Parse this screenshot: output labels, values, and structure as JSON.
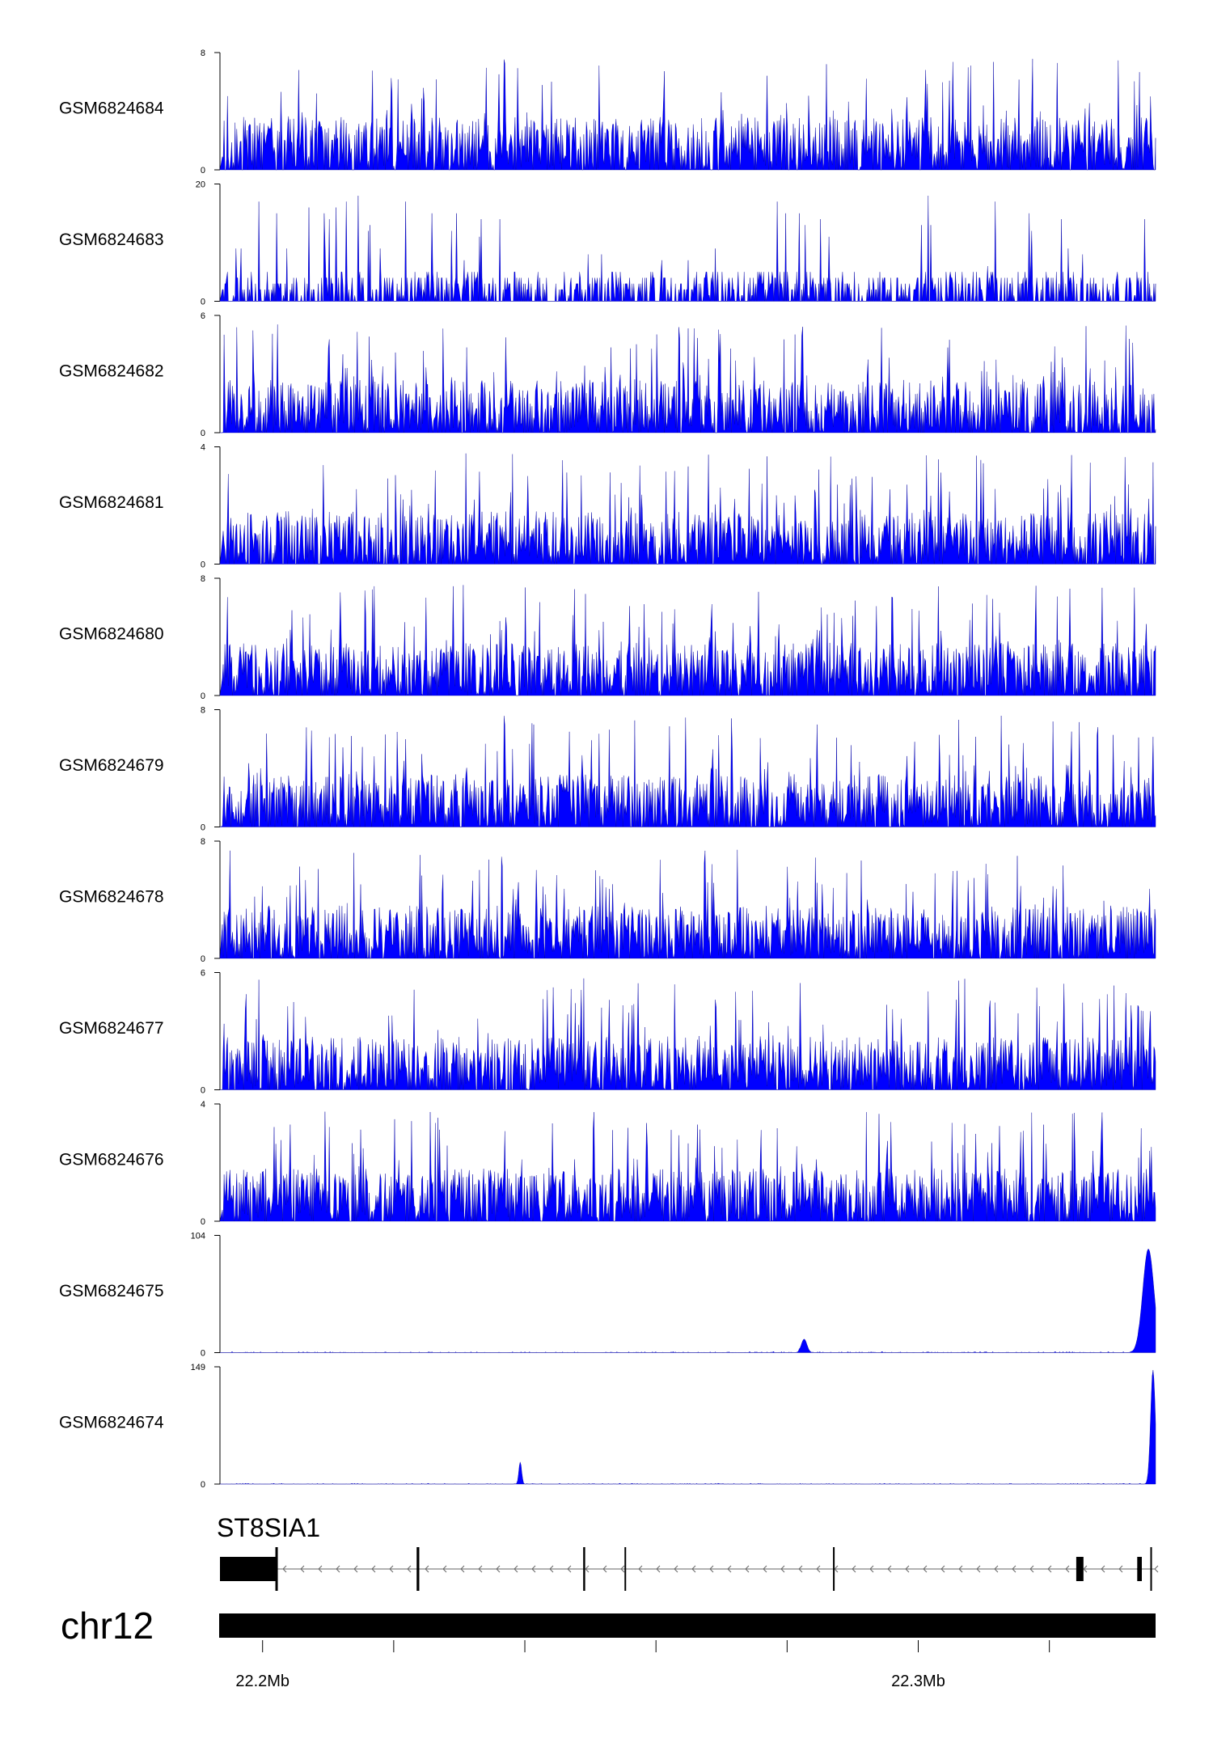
{
  "chart_data": {
    "type": "area",
    "title": "",
    "tracks": [
      {
        "name": "GSM6824684",
        "ymin": 0,
        "ymax": 8,
        "ymin_label": "0",
        "ymax_label": "8",
        "style": "noise",
        "seed": 11
      },
      {
        "name": "GSM6824683",
        "ymin": 0,
        "ymax": 20,
        "ymin_label": "0",
        "ymax_label": "20",
        "style": "sparse",
        "seed": 23
      },
      {
        "name": "GSM6824682",
        "ymin": 0,
        "ymax": 6,
        "ymin_label": "0",
        "ymax_label": "6",
        "style": "noise",
        "seed": 37
      },
      {
        "name": "GSM6824681",
        "ymin": 0,
        "ymax": 4,
        "ymin_label": "0",
        "ymax_label": "4",
        "style": "noise",
        "seed": 41
      },
      {
        "name": "GSM6824680",
        "ymin": 0,
        "ymax": 8,
        "ymin_label": "0",
        "ymax_label": "8",
        "style": "noise",
        "seed": 53
      },
      {
        "name": "GSM6824679",
        "ymin": 0,
        "ymax": 8,
        "ymin_label": "0",
        "ymax_label": "8",
        "style": "noise",
        "seed": 67
      },
      {
        "name": "GSM6824678",
        "ymin": 0,
        "ymax": 8,
        "ymin_label": "0",
        "ymax_label": "8",
        "style": "noise",
        "seed": 71
      },
      {
        "name": "GSM6824677",
        "ymin": 0,
        "ymax": 6,
        "ymin_label": "0",
        "ymax_label": "6",
        "style": "noise",
        "seed": 83
      },
      {
        "name": "GSM6824676",
        "ymin": 0,
        "ymax": 4,
        "ymin_label": "0",
        "ymax_label": "4",
        "style": "noise",
        "seed": 97
      },
      {
        "name": "GSM6824675",
        "ymin": 0,
        "ymax": 104,
        "ymin_label": "0",
        "ymax_label": "104",
        "style": "peaks",
        "seed": 101,
        "peaks": [
          {
            "x": 22.2826,
            "height": 12,
            "width": 0.0006
          },
          {
            "x": 22.3351,
            "height": 92,
            "width": 0.0012
          }
        ]
      },
      {
        "name": "GSM6824674",
        "ymin": 0,
        "ymax": 149,
        "ymin_label": "0",
        "ymax_label": "149",
        "style": "peaks",
        "seed": 113,
        "peaks": [
          {
            "x": 22.2393,
            "height": 28,
            "width": 0.0003
          },
          {
            "x": 22.3358,
            "height": 145,
            "width": 0.0005
          }
        ]
      }
    ],
    "x_range_mb": [
      22.1935,
      22.3362
    ],
    "color": "#0000ff",
    "gene": {
      "name": "ST8SIA1",
      "strand": "-",
      "exons": [
        {
          "start": 22.1935,
          "end": 22.2022
        },
        {
          "start": 22.2235,
          "end": 22.2239
        },
        {
          "start": 22.2489,
          "end": 22.2492
        },
        {
          "start": 22.2552,
          "end": 22.2554
        },
        {
          "start": 22.287,
          "end": 22.2872
        },
        {
          "start": 22.3241,
          "end": 22.3252
        },
        {
          "start": 22.3334,
          "end": 22.3341
        },
        {
          "start": 22.3354,
          "end": 22.3356
        }
      ]
    },
    "chromosome": {
      "label": "chr12"
    },
    "x_ticks": [
      {
        "value": 22.2,
        "label": "22.2Mb"
      },
      {
        "value": 22.22,
        "label": ""
      },
      {
        "value": 22.24,
        "label": ""
      },
      {
        "value": 22.26,
        "label": ""
      },
      {
        "value": 22.28,
        "label": ""
      },
      {
        "value": 22.3,
        "label": "22.3Mb"
      },
      {
        "value": 22.32,
        "label": ""
      }
    ]
  }
}
